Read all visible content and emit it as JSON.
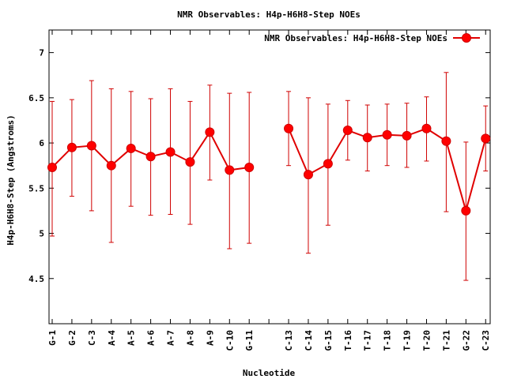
{
  "chart_data": {
    "type": "line",
    "title": "NMR Observables: H4p-H6H8-Step NOEs",
    "xlabel": "Nucleotide",
    "ylabel": "H4p-H6H8-Step (Angstroms)",
    "ylim": [
      4.0,
      7.25
    ],
    "yticks": [
      4.5,
      5,
      5.5,
      6,
      6.5,
      7
    ],
    "ytick_labels": [
      "4.5",
      "5",
      "5.5",
      "6",
      "6.5",
      "7"
    ],
    "grid": false,
    "legend_position": "top-right",
    "categories": [
      "G-1",
      "G-2",
      "C-3",
      "A-4",
      "A-5",
      "A-6",
      "A-7",
      "A-8",
      "A-9",
      "C-10",
      "G-11",
      "",
      "C-13",
      "C-14",
      "G-15",
      "T-16",
      "T-17",
      "T-18",
      "T-19",
      "T-20",
      "T-21",
      "G-22",
      "C-23"
    ],
    "series": [
      {
        "name": "NMR Observables: H4p-H6H8-Step NOEs",
        "color": "#e00000",
        "values": [
          5.73,
          5.95,
          5.97,
          5.75,
          5.94,
          5.85,
          5.9,
          5.79,
          6.12,
          5.7,
          5.73,
          null,
          6.16,
          5.65,
          5.77,
          6.14,
          6.06,
          6.09,
          6.08,
          6.16,
          6.02,
          5.25,
          6.05
        ],
        "err_low": [
          4.97,
          5.41,
          5.25,
          4.9,
          5.3,
          5.2,
          5.21,
          5.1,
          5.59,
          4.83,
          4.89,
          null,
          5.75,
          4.78,
          5.09,
          5.81,
          5.69,
          5.75,
          5.73,
          5.8,
          5.24,
          4.48,
          5.69
        ],
        "err_high": [
          6.46,
          6.48,
          6.69,
          6.6,
          6.57,
          6.49,
          6.6,
          6.46,
          6.64,
          6.55,
          6.56,
          null,
          6.57,
          6.5,
          6.43,
          6.47,
          6.42,
          6.43,
          6.44,
          6.51,
          6.78,
          6.01,
          6.41
        ]
      }
    ]
  }
}
